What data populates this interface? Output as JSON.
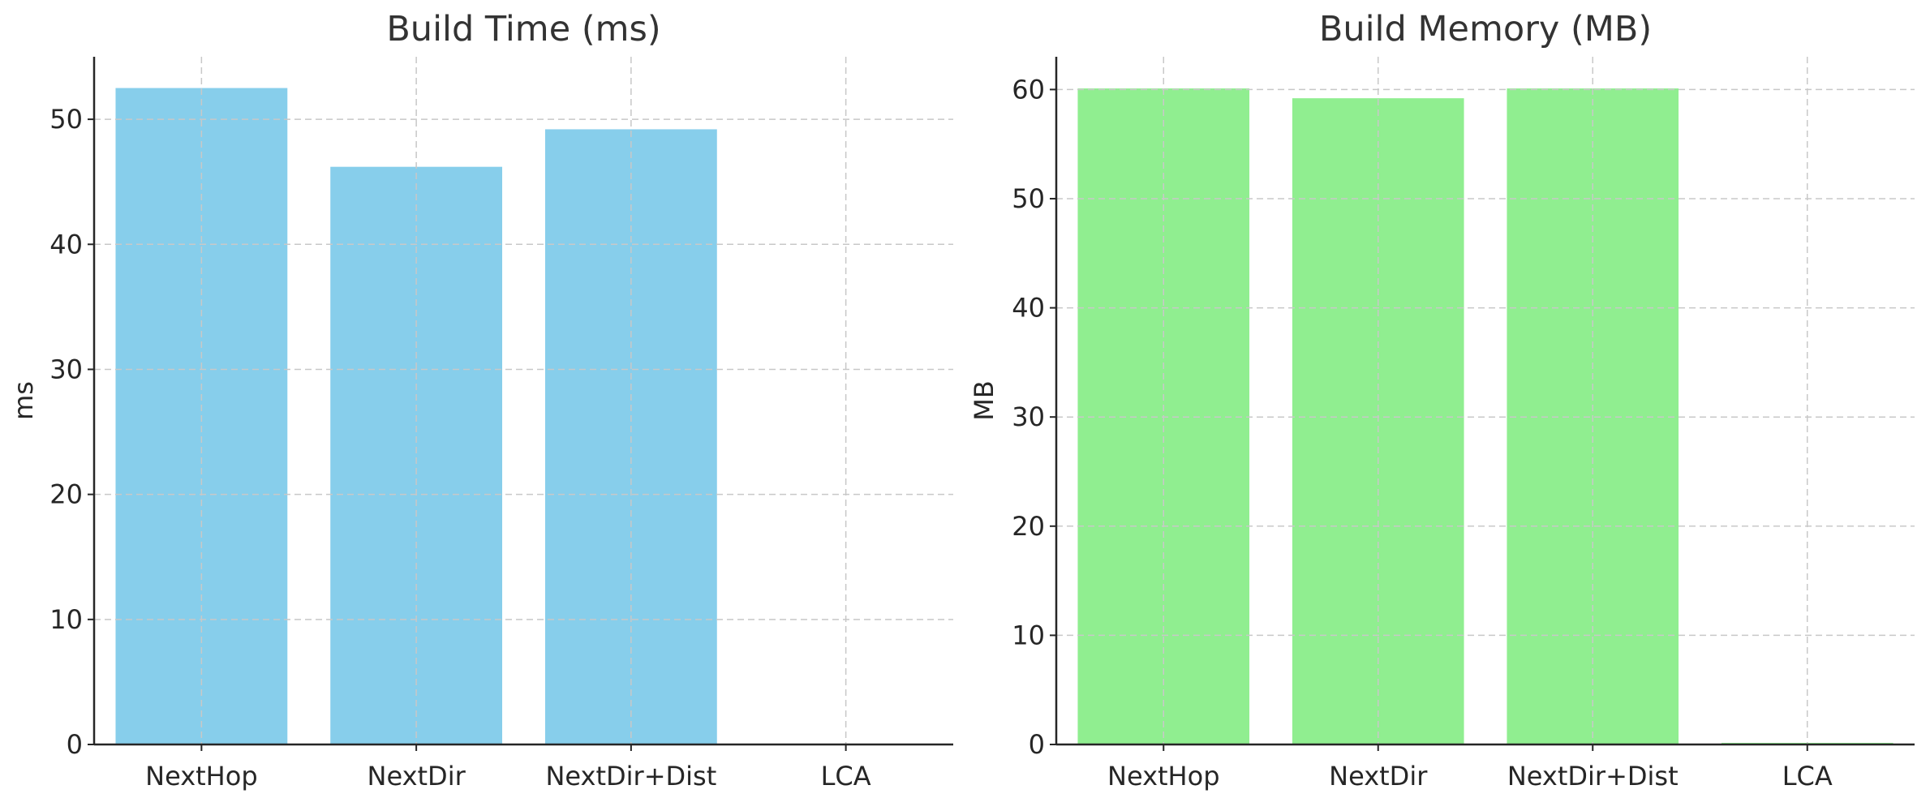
{
  "chart_data": [
    {
      "type": "bar",
      "title": "Build Time (ms)",
      "xlabel": "",
      "ylabel": "ms",
      "categories": [
        "NextHop",
        "NextDir",
        "NextDir+Dist",
        "LCA"
      ],
      "values": [
        52.5,
        46.2,
        49.2,
        0
      ],
      "ylim": [
        0,
        55
      ],
      "yticks": [
        0,
        10,
        20,
        30,
        40,
        50
      ],
      "bar_color": "#87ceeb",
      "grid": true
    },
    {
      "type": "bar",
      "title": "Build Memory (MB)",
      "xlabel": "",
      "ylabel": "MB",
      "categories": [
        "NextHop",
        "NextDir",
        "NextDir+Dist",
        "LCA"
      ],
      "values": [
        60.1,
        59.2,
        60.1,
        0.15
      ],
      "ylim": [
        0,
        63
      ],
      "yticks": [
        0,
        10,
        20,
        30,
        40,
        50,
        60
      ],
      "bar_color": "#90ee90",
      "grid": true
    }
  ]
}
